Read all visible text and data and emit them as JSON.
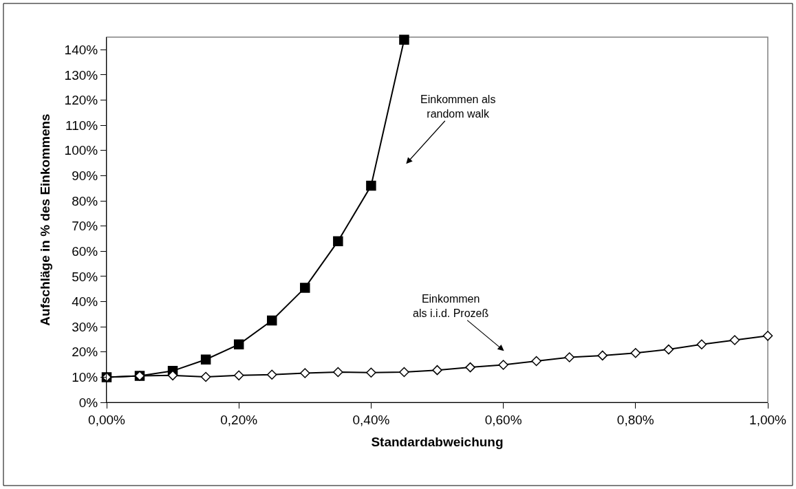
{
  "chart_data": {
    "type": "line",
    "xlabel": "Standardabweichung",
    "ylabel": "Aufschläge in % des Einkommens",
    "x": [
      0,
      0.05,
      0.1,
      0.15,
      0.2,
      0.25,
      0.3,
      0.35,
      0.4,
      0.45,
      0.5,
      0.55,
      0.6,
      0.65,
      0.7,
      0.75,
      0.8,
      0.85,
      0.9,
      0.95,
      1.0
    ],
    "series": [
      {
        "color": "#000000",
        "marker": "square",
        "x": [
          0,
          0.05,
          0.1,
          0.15,
          0.2,
          0.25,
          0.3,
          0.35,
          0.4,
          0.45
        ],
        "values": [
          10,
          10.5,
          12.5,
          17,
          23,
          32.5,
          45.5,
          64,
          86,
          144
        ]
      },
      {
        "color": "#000000",
        "marker": "diamond",
        "values": [
          10,
          10.5,
          10.7,
          10.1,
          10.7,
          11,
          11.6,
          12,
          11.8,
          12,
          12.8,
          13.9,
          14.9,
          16.4,
          17.9,
          18.6,
          19.6,
          21,
          23,
          24.7,
          26.4
        ]
      }
    ],
    "xlim": [
      0,
      1.0
    ],
    "ylim": [
      0,
      145
    ],
    "xticks": [
      {
        "value": 0,
        "label": "0,00%"
      },
      {
        "value": 0.2,
        "label": "0,20%"
      },
      {
        "value": 0.4,
        "label": "0,40%"
      },
      {
        "value": 0.6,
        "label": "0,60%"
      },
      {
        "value": 0.8,
        "label": "0,80%"
      },
      {
        "value": 1.0,
        "label": "1,00%"
      }
    ],
    "yticks": [
      {
        "value": 0,
        "label": "0%"
      },
      {
        "value": 10,
        "label": "10%"
      },
      {
        "value": 20,
        "label": "20%"
      },
      {
        "value": 30,
        "label": "30%"
      },
      {
        "value": 40,
        "label": "40%"
      },
      {
        "value": 50,
        "label": "50%"
      },
      {
        "value": 60,
        "label": "60%"
      },
      {
        "value": 70,
        "label": "70%"
      },
      {
        "value": 80,
        "label": "80%"
      },
      {
        "value": 90,
        "label": "90%"
      },
      {
        "value": 100,
        "label": "100%"
      },
      {
        "value": 110,
        "label": "110%"
      },
      {
        "value": 120,
        "label": "120%"
      },
      {
        "value": 130,
        "label": "130%"
      },
      {
        "value": 140,
        "label": "140%"
      }
    ],
    "annotations": [
      "Einkommen als\nrandom walk",
      "Einkommen\nals i.i.d. Prozeß"
    ],
    "grid": false,
    "line_style": "solid"
  }
}
